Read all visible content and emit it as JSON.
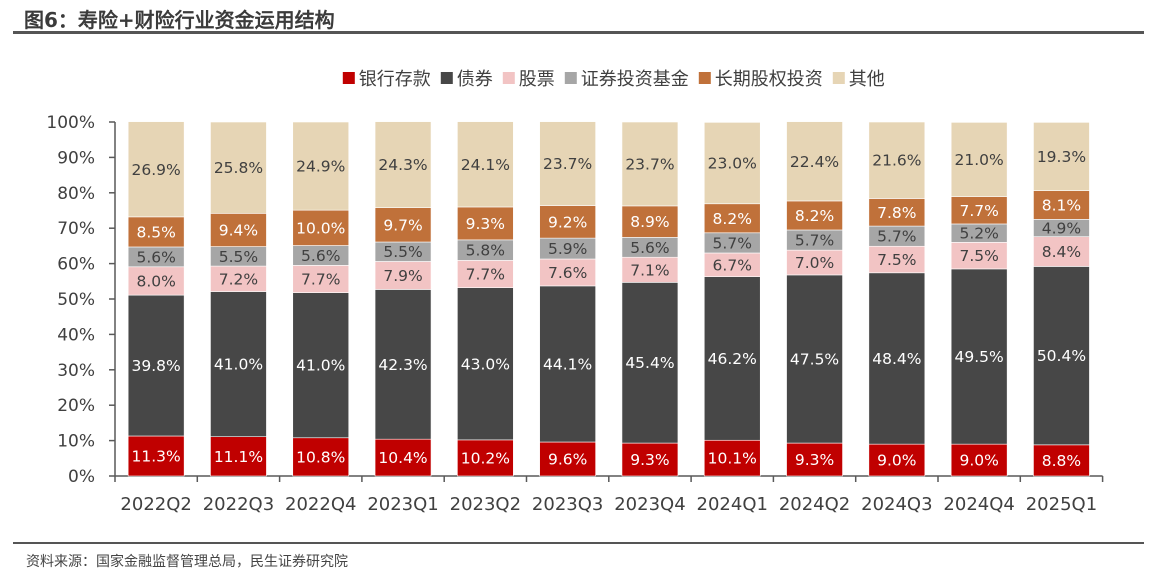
{
  "title": "图6：寿险+财险行业资金运用结构",
  "source": "资料来源：国家金融监督管理总局，民生证券研究院",
  "chart_data": {
    "type": "bar",
    "stacked": true,
    "title": "图6：寿险+财险行业资金运用结构",
    "xlabel": "",
    "ylabel": "",
    "ylim": [
      0,
      100
    ],
    "yticks": [
      "0%",
      "10%",
      "20%",
      "30%",
      "40%",
      "50%",
      "60%",
      "70%",
      "80%",
      "90%",
      "100%"
    ],
    "legend_position": "top",
    "grid": false,
    "categories": [
      "2022Q2",
      "2022Q3",
      "2022Q4",
      "2023Q1",
      "2023Q2",
      "2023Q3",
      "2023Q4",
      "2024Q1",
      "2024Q2",
      "2024Q3",
      "2024Q4",
      "2025Q1"
    ],
    "series": [
      {
        "name": "银行存款",
        "color": "#c00000",
        "label_color": "#ffffff",
        "values": [
          11.3,
          11.1,
          10.8,
          10.4,
          10.2,
          9.6,
          9.3,
          10.1,
          9.3,
          9.0,
          9.0,
          8.8
        ]
      },
      {
        "name": "债券",
        "color": "#474747",
        "label_color": "#ffffff",
        "values": [
          39.8,
          41.0,
          41.0,
          42.3,
          43.0,
          44.1,
          45.4,
          46.2,
          47.5,
          48.4,
          49.5,
          50.4
        ]
      },
      {
        "name": "股票",
        "color": "#f2c4c4",
        "label_color": "#404040",
        "values": [
          8.0,
          7.2,
          7.7,
          7.9,
          7.7,
          7.6,
          7.1,
          6.7,
          7.0,
          7.5,
          7.5,
          8.4
        ]
      },
      {
        "name": "证券投资基金",
        "color": "#a6a6a6",
        "label_color": "#404040",
        "values": [
          5.6,
          5.5,
          5.6,
          5.5,
          5.8,
          5.9,
          5.6,
          5.7,
          5.7,
          5.7,
          5.2,
          4.9
        ]
      },
      {
        "name": "长期股权投资",
        "color": "#c0713a",
        "label_color": "#ffffff",
        "values": [
          8.5,
          9.4,
          10.0,
          9.7,
          9.3,
          9.2,
          8.9,
          8.2,
          8.2,
          7.8,
          7.7,
          8.1
        ]
      },
      {
        "name": "其他",
        "color": "#e6d5b5",
        "label_color": "#404040",
        "values": [
          26.9,
          25.8,
          24.9,
          24.3,
          24.1,
          23.7,
          23.7,
          23.0,
          22.4,
          21.6,
          21.0,
          19.3
        ]
      }
    ]
  }
}
